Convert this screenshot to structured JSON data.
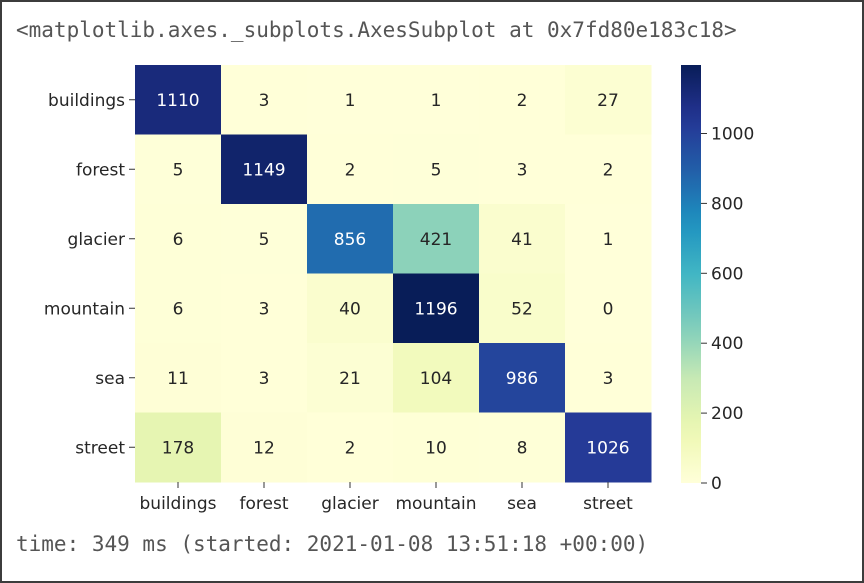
{
  "output": {
    "repr_text": "<matplotlib.axes._subplots.AxesSubplot at 0x7fd80e183c18>",
    "timing_text": "time: 349 ms (started: 2021-01-08 13:51:18 +00:00)"
  },
  "chart_data": {
    "type": "heatmap",
    "title": "",
    "xlabel": "",
    "ylabel": "",
    "x_categories": [
      "buildings",
      "forest",
      "glacier",
      "mountain",
      "sea",
      "street"
    ],
    "y_categories": [
      "buildings",
      "forest",
      "glacier",
      "mountain",
      "sea",
      "street"
    ],
    "values": [
      [
        1110,
        3,
        1,
        1,
        2,
        27
      ],
      [
        5,
        1149,
        2,
        5,
        3,
        2
      ],
      [
        6,
        5,
        856,
        421,
        41,
        1
      ],
      [
        6,
        3,
        40,
        1196,
        52,
        0
      ],
      [
        11,
        3,
        21,
        104,
        986,
        3
      ],
      [
        178,
        12,
        2,
        10,
        8,
        1026
      ]
    ],
    "annotations": true,
    "colormap": "YlGnBu",
    "colorbar": {
      "vmin": 0,
      "vmax": 1196,
      "ticks": [
        0,
        200,
        400,
        600,
        800,
        1000
      ],
      "tick_labels": [
        "0",
        "200",
        "400",
        "600",
        "800",
        "1000"
      ]
    },
    "grid": false
  }
}
